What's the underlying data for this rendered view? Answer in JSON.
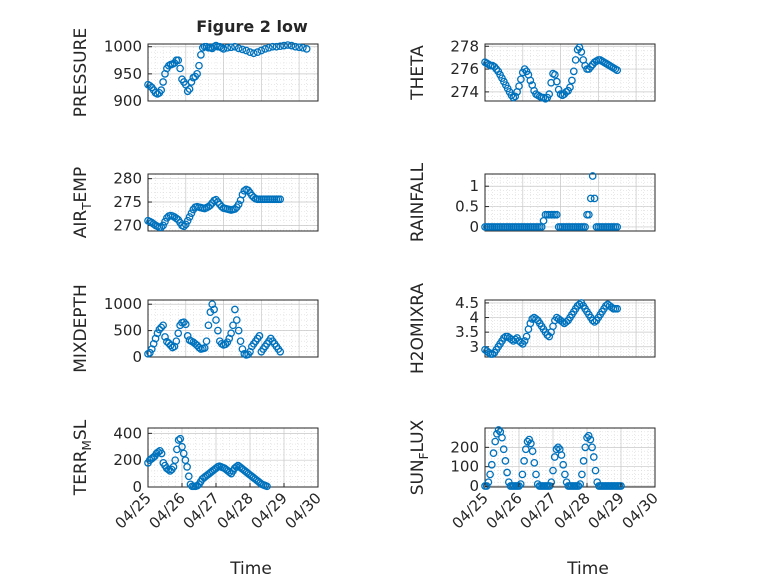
{
  "figure_title": "Figure 2 low",
  "marker_color": "#0072BD",
  "x_tick_labels": [
    "04/25",
    "04/26",
    "04/27",
    "04/28",
    "04/29",
    "04/30"
  ],
  "x_axis_label": "Time",
  "chart_data": [
    {
      "type": "scatter",
      "ylabel": "PRESSURE",
      "yticks": [
        "900",
        "950",
        "1000"
      ],
      "ylim": [
        900,
        1005
      ],
      "xlim": [
        "04/25",
        "04/29 12:00"
      ],
      "grid": true,
      "x": [
        0,
        0.05,
        0.1,
        0.15,
        0.2,
        0.25,
        0.3,
        0.35,
        0.4,
        0.45,
        0.5,
        0.55,
        0.6,
        0.65,
        0.7,
        0.75,
        0.8,
        0.85,
        0.9,
        0.95,
        1.0,
        1.05,
        1.1,
        1.15,
        1.2,
        1.25,
        1.3,
        1.35,
        1.4,
        1.45,
        1.5,
        1.55,
        1.6,
        1.65,
        1.7,
        1.75,
        1.8,
        1.85,
        1.9,
        1.95,
        2.0,
        2.1,
        2.2,
        2.3,
        2.4,
        2.5,
        2.6,
        2.7,
        2.8,
        2.9,
        3.0,
        3.1,
        3.2,
        3.3,
        3.4,
        3.5,
        3.6,
        3.7,
        3.8,
        3.9,
        4.0,
        4.1,
        4.2
      ],
      "y": [
        930,
        928,
        925,
        920,
        915,
        913,
        915,
        920,
        935,
        950,
        960,
        965,
        967,
        968,
        970,
        975,
        975,
        960,
        940,
        935,
        930,
        918,
        922,
        935,
        943,
        945,
        950,
        965,
        985,
        998,
        1000,
        1000,
        998,
        998,
        997,
        1000,
        1002,
        1000,
        1000,
        998,
        996,
        998,
        999,
        1000,
        997,
        995,
        993,
        990,
        988,
        990,
        993,
        996,
        998,
        1000,
        1000,
        1001,
        1002,
        1003,
        1002,
        1000,
        999,
        998,
        996
      ]
    },
    {
      "type": "scatter",
      "ylabel": "THETA",
      "yticks": [
        "274",
        "276",
        "278"
      ],
      "ylim": [
        273.2,
        278.2
      ],
      "xlim": [
        "04/25",
        "04/29 12:00"
      ],
      "grid": true,
      "x": [
        0,
        0.05,
        0.1,
        0.15,
        0.2,
        0.25,
        0.3,
        0.35,
        0.4,
        0.45,
        0.5,
        0.55,
        0.6,
        0.65,
        0.7,
        0.75,
        0.8,
        0.85,
        0.9,
        0.95,
        1.0,
        1.05,
        1.1,
        1.15,
        1.2,
        1.25,
        1.3,
        1.35,
        1.4,
        1.45,
        1.5,
        1.55,
        1.6,
        1.65,
        1.7,
        1.75,
        1.8,
        1.85,
        1.9,
        1.95,
        2.0,
        2.05,
        2.1,
        2.15,
        2.2,
        2.25,
        2.3,
        2.35,
        2.4,
        2.45,
        2.5,
        2.55,
        2.6,
        2.65,
        2.7,
        2.75,
        2.8,
        2.85,
        2.9,
        2.95,
        3.0,
        3.05,
        3.1,
        3.15,
        3.2,
        3.25,
        3.3,
        3.35,
        3.4,
        3.45,
        3.5
      ],
      "y": [
        276.6,
        276.5,
        276.4,
        276.3,
        276.3,
        276.2,
        276.0,
        275.8,
        275.5,
        275.2,
        274.9,
        274.6,
        274.3,
        274.0,
        273.7,
        273.5,
        273.6,
        274.0,
        274.5,
        275.1,
        275.7,
        276.0,
        275.8,
        275.5,
        275.0,
        274.6,
        274.1,
        273.8,
        273.7,
        273.6,
        273.5,
        273.5,
        273.4,
        273.5,
        273.8,
        274.8,
        275.6,
        275.5,
        274.9,
        274.2,
        273.8,
        273.7,
        273.8,
        274.0,
        274.1,
        274.4,
        275.0,
        275.8,
        276.8,
        277.7,
        277.9,
        277.5,
        276.8,
        276.3,
        276.0,
        276.0,
        276.2,
        276.4,
        276.6,
        276.7,
        276.8,
        276.8,
        276.7,
        276.6,
        276.5,
        276.4,
        276.3,
        276.2,
        276.1,
        276.0,
        275.9
      ]
    },
    {
      "type": "scatter",
      "ylabel": "AIR_TEMP",
      "yticks": [
        "270",
        "275",
        "280"
      ],
      "ylim": [
        268.8,
        281
      ],
      "xlim": [
        "04/25",
        "04/29 12:00"
      ],
      "grid": true,
      "x": [
        0,
        0.05,
        0.1,
        0.15,
        0.2,
        0.25,
        0.3,
        0.35,
        0.4,
        0.45,
        0.5,
        0.55,
        0.6,
        0.65,
        0.7,
        0.75,
        0.8,
        0.85,
        0.9,
        0.95,
        1.0,
        1.05,
        1.1,
        1.15,
        1.2,
        1.25,
        1.3,
        1.35,
        1.4,
        1.45,
        1.5,
        1.55,
        1.6,
        1.65,
        1.7,
        1.75,
        1.8,
        1.85,
        1.9,
        1.95,
        2.0,
        2.05,
        2.1,
        2.15,
        2.2,
        2.25,
        2.3,
        2.35,
        2.4,
        2.45,
        2.5,
        2.55,
        2.6,
        2.65,
        2.7,
        2.75,
        2.8,
        2.85,
        2.9,
        2.95,
        3.0,
        3.05,
        3.1,
        3.15,
        3.2,
        3.25,
        3.3,
        3.35,
        3.4,
        3.45,
        3.5
      ],
      "y": [
        271.0,
        270.8,
        270.6,
        270.3,
        270.0,
        269.8,
        269.6,
        269.6,
        270.0,
        270.8,
        271.6,
        272.0,
        272.1,
        272.0,
        271.8,
        271.5,
        271.2,
        270.6,
        270.0,
        269.8,
        270.2,
        271.0,
        271.8,
        272.6,
        273.4,
        273.9,
        274.0,
        273.9,
        273.8,
        273.7,
        273.6,
        273.8,
        274.0,
        274.3,
        274.8,
        275.3,
        275.5,
        275.0,
        274.5,
        274.0,
        273.7,
        273.6,
        273.5,
        273.4,
        273.3,
        273.4,
        273.5,
        273.9,
        274.5,
        275.4,
        276.6,
        277.4,
        277.7,
        277.5,
        277.0,
        276.4,
        276.0,
        275.7,
        275.6,
        275.6,
        275.6,
        275.6,
        275.6,
        275.6,
        275.6,
        275.6,
        275.6,
        275.6,
        275.6,
        275.6,
        275.6
      ]
    },
    {
      "type": "scatter",
      "ylabel": "RAINFALL",
      "yticks": [
        "0",
        "0.5",
        "1"
      ],
      "ylim": [
        -0.1,
        1.3
      ],
      "xlim": [
        "04/25",
        "04/29 12:00"
      ],
      "grid": true,
      "x": [
        0,
        0.05,
        0.1,
        0.15,
        0.2,
        0.25,
        0.3,
        0.35,
        0.4,
        0.45,
        0.5,
        0.55,
        0.6,
        0.65,
        0.7,
        0.75,
        0.8,
        0.85,
        0.9,
        0.95,
        1.0,
        1.05,
        1.1,
        1.15,
        1.2,
        1.25,
        1.3,
        1.35,
        1.4,
        1.45,
        1.5,
        1.55,
        1.6,
        1.65,
        1.7,
        1.75,
        1.8,
        1.85,
        1.9,
        1.95,
        2.0,
        2.05,
        2.1,
        2.15,
        2.2,
        2.25,
        2.3,
        2.35,
        2.4,
        2.45,
        2.5,
        2.55,
        2.6,
        2.65,
        2.7,
        2.75,
        2.8,
        2.85,
        2.9,
        2.95,
        3.0,
        3.05,
        3.1,
        3.15,
        3.2,
        3.25,
        3.3,
        3.35,
        3.4,
        3.45,
        3.5
      ],
      "y": [
        0,
        0,
        0,
        0,
        0,
        0,
        0,
        0,
        0,
        0,
        0,
        0,
        0,
        0,
        0,
        0,
        0,
        0,
        0,
        0,
        0,
        0,
        0,
        0,
        0,
        0,
        0,
        0,
        0,
        0,
        0,
        0.15,
        0.3,
        0.3,
        0.3,
        0.3,
        0.3,
        0.3,
        0.3,
        0,
        0,
        0,
        0,
        0,
        0,
        0,
        0,
        0,
        0,
        0,
        0,
        0,
        0,
        0,
        0.3,
        0.3,
        0.7,
        1.25,
        0.7,
        0,
        0,
        0,
        0,
        0,
        0,
        0,
        0,
        0,
        0,
        0,
        0
      ]
    },
    {
      "type": "scatter",
      "ylabel": "MIXDEPTH",
      "yticks": [
        "0",
        "500",
        "1000"
      ],
      "ylim": [
        0,
        1080
      ],
      "xlim": [
        "04/25",
        "04/29 12:00"
      ],
      "grid": true,
      "x": [
        0,
        0.05,
        0.1,
        0.15,
        0.2,
        0.25,
        0.3,
        0.35,
        0.4,
        0.45,
        0.5,
        0.55,
        0.6,
        0.65,
        0.7,
        0.75,
        0.8,
        0.85,
        0.9,
        0.95,
        1.0,
        1.05,
        1.1,
        1.15,
        1.2,
        1.25,
        1.3,
        1.35,
        1.4,
        1.45,
        1.5,
        1.55,
        1.6,
        1.65,
        1.7,
        1.75,
        1.8,
        1.85,
        1.9,
        1.95,
        2.0,
        2.05,
        2.1,
        2.15,
        2.2,
        2.25,
        2.3,
        2.35,
        2.4,
        2.45,
        2.5,
        2.55,
        2.6,
        2.65,
        2.7,
        2.75,
        2.8,
        2.85,
        2.9,
        2.95,
        3.0,
        3.05,
        3.1,
        3.15,
        3.2,
        3.25,
        3.3,
        3.35,
        3.4,
        3.45,
        3.5
      ],
      "y": [
        60,
        80,
        150,
        250,
        350,
        450,
        520,
        560,
        600,
        380,
        290,
        260,
        220,
        180,
        200,
        300,
        450,
        600,
        650,
        660,
        620,
        400,
        320,
        300,
        280,
        250,
        220,
        180,
        150,
        160,
        170,
        300,
        600,
        850,
        1000,
        900,
        700,
        500,
        300,
        250,
        230,
        240,
        280,
        350,
        450,
        600,
        900,
        700,
        500,
        300,
        150,
        60,
        40,
        50,
        100,
        200,
        250,
        300,
        350,
        400,
        100,
        150,
        200,
        250,
        300,
        350,
        300,
        250,
        200,
        150,
        100
      ]
    },
    {
      "type": "scatter",
      "ylabel": "H2OMIXRA",
      "yticks": [
        "3",
        "3.5",
        "4",
        "4.5"
      ],
      "ylim": [
        2.65,
        4.6
      ],
      "xlim": [
        "04/25",
        "04/29 12:00"
      ],
      "grid": true,
      "x": [
        0,
        0.05,
        0.1,
        0.15,
        0.2,
        0.25,
        0.3,
        0.35,
        0.4,
        0.45,
        0.5,
        0.55,
        0.6,
        0.65,
        0.7,
        0.75,
        0.8,
        0.85,
        0.9,
        0.95,
        1.0,
        1.05,
        1.1,
        1.15,
        1.2,
        1.25,
        1.3,
        1.35,
        1.4,
        1.45,
        1.5,
        1.55,
        1.6,
        1.65,
        1.7,
        1.75,
        1.8,
        1.85,
        1.9,
        1.95,
        2.0,
        2.05,
        2.1,
        2.15,
        2.2,
        2.25,
        2.3,
        2.35,
        2.4,
        2.45,
        2.5,
        2.55,
        2.6,
        2.65,
        2.7,
        2.75,
        2.8,
        2.85,
        2.9,
        2.95,
        3.0,
        3.05,
        3.1,
        3.15,
        3.2,
        3.25,
        3.3,
        3.35,
        3.4,
        3.45,
        3.5
      ],
      "y": [
        2.9,
        2.85,
        2.8,
        2.75,
        2.75,
        2.8,
        2.9,
        3.0,
        3.1,
        3.2,
        3.3,
        3.35,
        3.35,
        3.3,
        3.25,
        3.2,
        3.25,
        3.3,
        3.2,
        3.15,
        3.1,
        3.2,
        3.35,
        3.6,
        3.8,
        3.95,
        4.0,
        3.95,
        3.9,
        3.8,
        3.7,
        3.6,
        3.5,
        3.4,
        3.35,
        3.5,
        3.7,
        3.9,
        4.0,
        3.95,
        3.9,
        3.85,
        3.8,
        3.85,
        3.9,
        4.0,
        4.1,
        4.2,
        4.3,
        4.4,
        4.45,
        4.5,
        4.4,
        4.3,
        4.2,
        4.1,
        4.0,
        3.9,
        3.85,
        3.9,
        4.0,
        4.1,
        4.2,
        4.3,
        4.4,
        4.45,
        4.4,
        4.35,
        4.3,
        4.3,
        4.3
      ]
    },
    {
      "type": "scatter",
      "ylabel": "TERR_MSL",
      "yticks": [
        "0",
        "200",
        "400"
      ],
      "ylim": [
        0,
        440
      ],
      "xlim": [
        "04/25",
        "04/29 12:00"
      ],
      "grid": true,
      "x": [
        0,
        0.05,
        0.1,
        0.15,
        0.2,
        0.25,
        0.3,
        0.35,
        0.4,
        0.45,
        0.5,
        0.55,
        0.6,
        0.65,
        0.7,
        0.75,
        0.8,
        0.85,
        0.9,
        0.95,
        1.0,
        1.05,
        1.1,
        1.15,
        1.2,
        1.25,
        1.3,
        1.35,
        1.4,
        1.45,
        1.5,
        1.55,
        1.6,
        1.65,
        1.7,
        1.75,
        1.8,
        1.85,
        1.9,
        1.95,
        2.0,
        2.05,
        2.1,
        2.15,
        2.2,
        2.25,
        2.3,
        2.35,
        2.4,
        2.45,
        2.5,
        2.55,
        2.6,
        2.65,
        2.7,
        2.75,
        2.8,
        2.85,
        2.9,
        2.95,
        3.0,
        3.05,
        3.1,
        3.15,
        3.2,
        3.25,
        3.3,
        3.35,
        3.4,
        3.45,
        3.5
      ],
      "y": [
        180,
        200,
        210,
        220,
        230,
        250,
        260,
        270,
        250,
        180,
        160,
        140,
        130,
        120,
        130,
        150,
        200,
        280,
        350,
        360,
        300,
        250,
        200,
        150,
        80,
        20,
        5,
        5,
        5,
        10,
        20,
        40,
        60,
        70,
        80,
        90,
        100,
        110,
        120,
        130,
        140,
        150,
        155,
        150,
        145,
        140,
        130,
        120,
        110,
        100,
        120,
        140,
        150,
        160,
        150,
        140,
        130,
        120,
        110,
        100,
        90,
        80,
        70,
        60,
        50,
        40,
        30,
        20,
        15,
        10,
        5
      ]
    },
    {
      "type": "scatter",
      "ylabel": "SUN_FLUX",
      "yticks": [
        "0",
        "100",
        "200"
      ],
      "ylim": [
        -5,
        300
      ],
      "xlim": [
        "04/25",
        "04/30"
      ],
      "grid": true,
      "x": [
        0,
        0.05,
        0.1,
        0.15,
        0.2,
        0.25,
        0.3,
        0.35,
        0.4,
        0.45,
        0.5,
        0.55,
        0.6,
        0.65,
        0.7,
        0.75,
        0.8,
        0.85,
        0.9,
        0.95,
        1.0,
        1.05,
        1.1,
        1.15,
        1.2,
        1.25,
        1.3,
        1.35,
        1.4,
        1.45,
        1.5,
        1.55,
        1.6,
        1.65,
        1.7,
        1.75,
        1.8,
        1.85,
        1.9,
        1.95,
        2.0,
        2.05,
        2.1,
        2.15,
        2.2,
        2.25,
        2.3,
        2.35,
        2.4,
        2.45,
        2.5,
        2.55,
        2.6,
        2.65,
        2.7,
        2.75,
        2.8,
        2.85,
        2.9,
        2.95,
        3.0,
        3.05,
        3.1,
        3.15,
        3.2,
        3.25,
        3.3,
        3.35,
        3.4,
        3.45,
        3.5,
        3.55,
        3.6,
        3.65,
        3.7,
        3.75,
        3.8,
        3.85,
        3.9,
        3.95,
        4.0
      ],
      "y": [
        0,
        0,
        20,
        60,
        110,
        170,
        230,
        270,
        290,
        280,
        250,
        190,
        130,
        70,
        20,
        0,
        0,
        0,
        0,
        0,
        0,
        10,
        60,
        130,
        190,
        230,
        240,
        220,
        180,
        120,
        60,
        10,
        0,
        0,
        0,
        0,
        0,
        0,
        0,
        20,
        80,
        150,
        190,
        200,
        190,
        160,
        110,
        60,
        20,
        0,
        0,
        0,
        0,
        0,
        0,
        0,
        10,
        60,
        130,
        200,
        250,
        260,
        240,
        200,
        150,
        80,
        20,
        0,
        0,
        0,
        0,
        0,
        0,
        0,
        0,
        0,
        0,
        0,
        0,
        0,
        0
      ]
    }
  ],
  "panel_ylabels": [
    {
      "main": "PRESSURE"
    },
    {
      "main": "THETA"
    },
    {
      "main": "AIR",
      "sub": "T",
      "rest": "EMP"
    },
    {
      "main": "RAINFALL"
    },
    {
      "main": "MIXDEPTH"
    },
    {
      "main": "H2OMIXRA"
    },
    {
      "main": "TERR",
      "sub": "M",
      "rest": "SL"
    },
    {
      "main": "SUN",
      "sub": "F",
      "rest": "LUX"
    }
  ]
}
